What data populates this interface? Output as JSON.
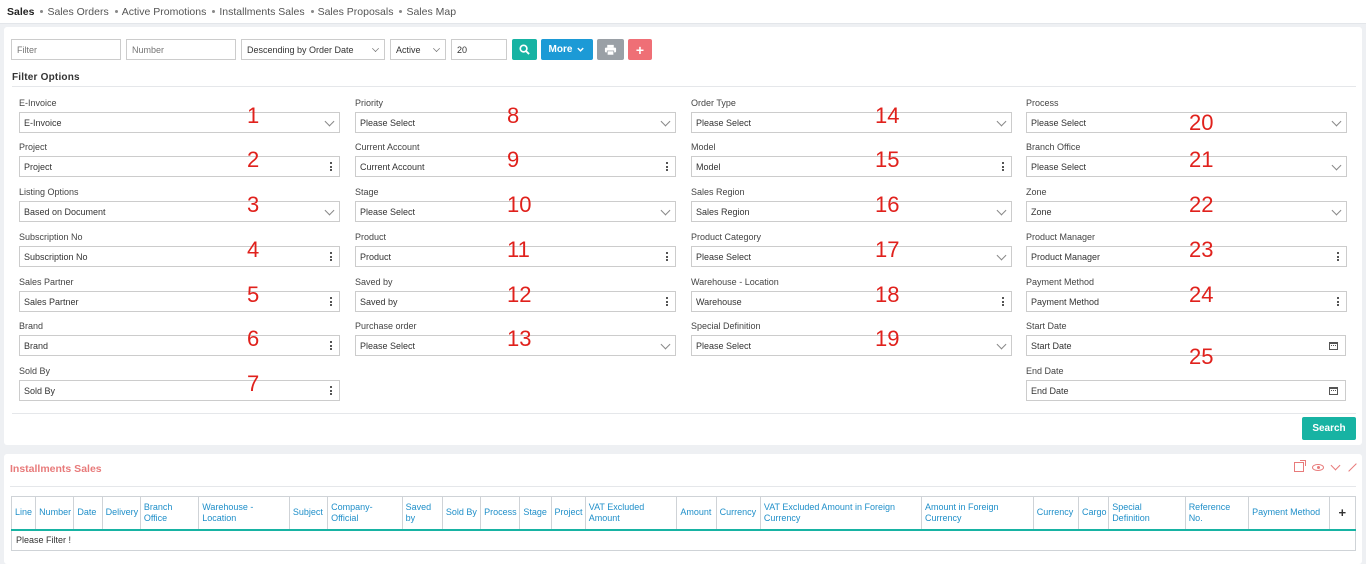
{
  "nav": {
    "items": [
      {
        "label": "Sales",
        "active": true
      },
      {
        "label": "Sales Orders",
        "active": false
      },
      {
        "label": "Active Promotions",
        "active": false
      },
      {
        "label": "Installments Sales",
        "active": false
      },
      {
        "label": "Sales Proposals",
        "active": false
      },
      {
        "label": "Sales Map",
        "active": false
      }
    ]
  },
  "toolbar": {
    "filter_placeholder": "Filter",
    "number_placeholder": "Number",
    "sort_value": "Descending by Order Date",
    "status_value": "Active",
    "page_size_value": "20",
    "more_label": "More",
    "add_label": "+"
  },
  "filter_options": {
    "title": "Filter Options",
    "search_label": "Search",
    "fields": [
      {
        "label": "E-Invoice",
        "value": "E-Invoice",
        "type": "select",
        "number": "1"
      },
      {
        "label": "Project",
        "value": "Project",
        "type": "lookup",
        "number": "2"
      },
      {
        "label": "Listing Options",
        "value": "Based on Document",
        "type": "select",
        "number": "3"
      },
      {
        "label": "Subscription No",
        "value": "Subscription No",
        "type": "lookup",
        "number": "4"
      },
      {
        "label": "Sales Partner",
        "value": "Sales Partner",
        "type": "lookup",
        "number": "5"
      },
      {
        "label": "Brand",
        "value": "Brand",
        "type": "lookup",
        "number": "6"
      },
      {
        "label": "Sold By",
        "value": "Sold By",
        "type": "lookup",
        "number": "7"
      },
      {
        "label": "Priority",
        "value": "Please Select",
        "type": "select",
        "number": "8"
      },
      {
        "label": "Current Account",
        "value": "Current Account",
        "type": "lookup",
        "number": "9"
      },
      {
        "label": "Stage",
        "value": "Please Select",
        "type": "select",
        "number": "10"
      },
      {
        "label": "Product",
        "value": "Product",
        "type": "lookup",
        "number": "11"
      },
      {
        "label": "Saved by",
        "value": "Saved by",
        "type": "lookup",
        "number": "12"
      },
      {
        "label": "Purchase order",
        "value": "Please Select",
        "type": "select",
        "number": "13"
      },
      {
        "label": "Order Type",
        "value": "Please Select",
        "type": "select",
        "number": "14"
      },
      {
        "label": "Model",
        "value": "Model",
        "type": "lookup",
        "number": "15"
      },
      {
        "label": "Sales Region",
        "value": "Sales Region",
        "type": "select",
        "number": "16"
      },
      {
        "label": "Product Category",
        "value": "Please Select",
        "type": "select",
        "number": "17"
      },
      {
        "label": "Warehouse - Location",
        "value": "Warehouse",
        "type": "lookup",
        "number": "18"
      },
      {
        "label": "Special Definition",
        "value": "Please Select",
        "type": "select",
        "number": "19"
      },
      {
        "label": "Process",
        "value": "Please Select",
        "type": "select",
        "number": "20"
      },
      {
        "label": "Branch Office",
        "value": "Please Select",
        "type": "select",
        "number": "21"
      },
      {
        "label": "Zone",
        "value": "Zone",
        "type": "select",
        "number": "22"
      },
      {
        "label": "Product Manager",
        "value": "Product Manager",
        "type": "lookup",
        "number": "23"
      },
      {
        "label": "Payment Method",
        "value": "Payment Method",
        "type": "lookup",
        "number": "24"
      },
      {
        "label": "Start Date",
        "value": "Start Date",
        "type": "date",
        "number": "25"
      },
      {
        "label": "End Date",
        "value": "End Date",
        "type": "date",
        "number": ""
      }
    ]
  },
  "installments": {
    "title": "Installments Sales",
    "columns": [
      "Line",
      "Number",
      "Date",
      "Delivery",
      "Branch Office",
      "Warehouse - Location",
      "Subject",
      "Company-Official",
      "Saved by",
      "Sold By",
      "Process",
      "Stage",
      "Project",
      "VAT Excluded Amount",
      "Amount",
      "Currency",
      "VAT Excluded Amount in Foreign Currency",
      "Amount in Foreign Currency",
      "Currency",
      "Cargo",
      "Special Definition",
      "Reference No.",
      "Payment Method"
    ],
    "add_column_label": "+",
    "empty_message": "Please Filter !"
  },
  "colors": {
    "accent_teal": "#17b3a3",
    "accent_blue": "#1c9ad6",
    "accent_red": "#ef6f76",
    "annotation_red": "#e0211c"
  }
}
